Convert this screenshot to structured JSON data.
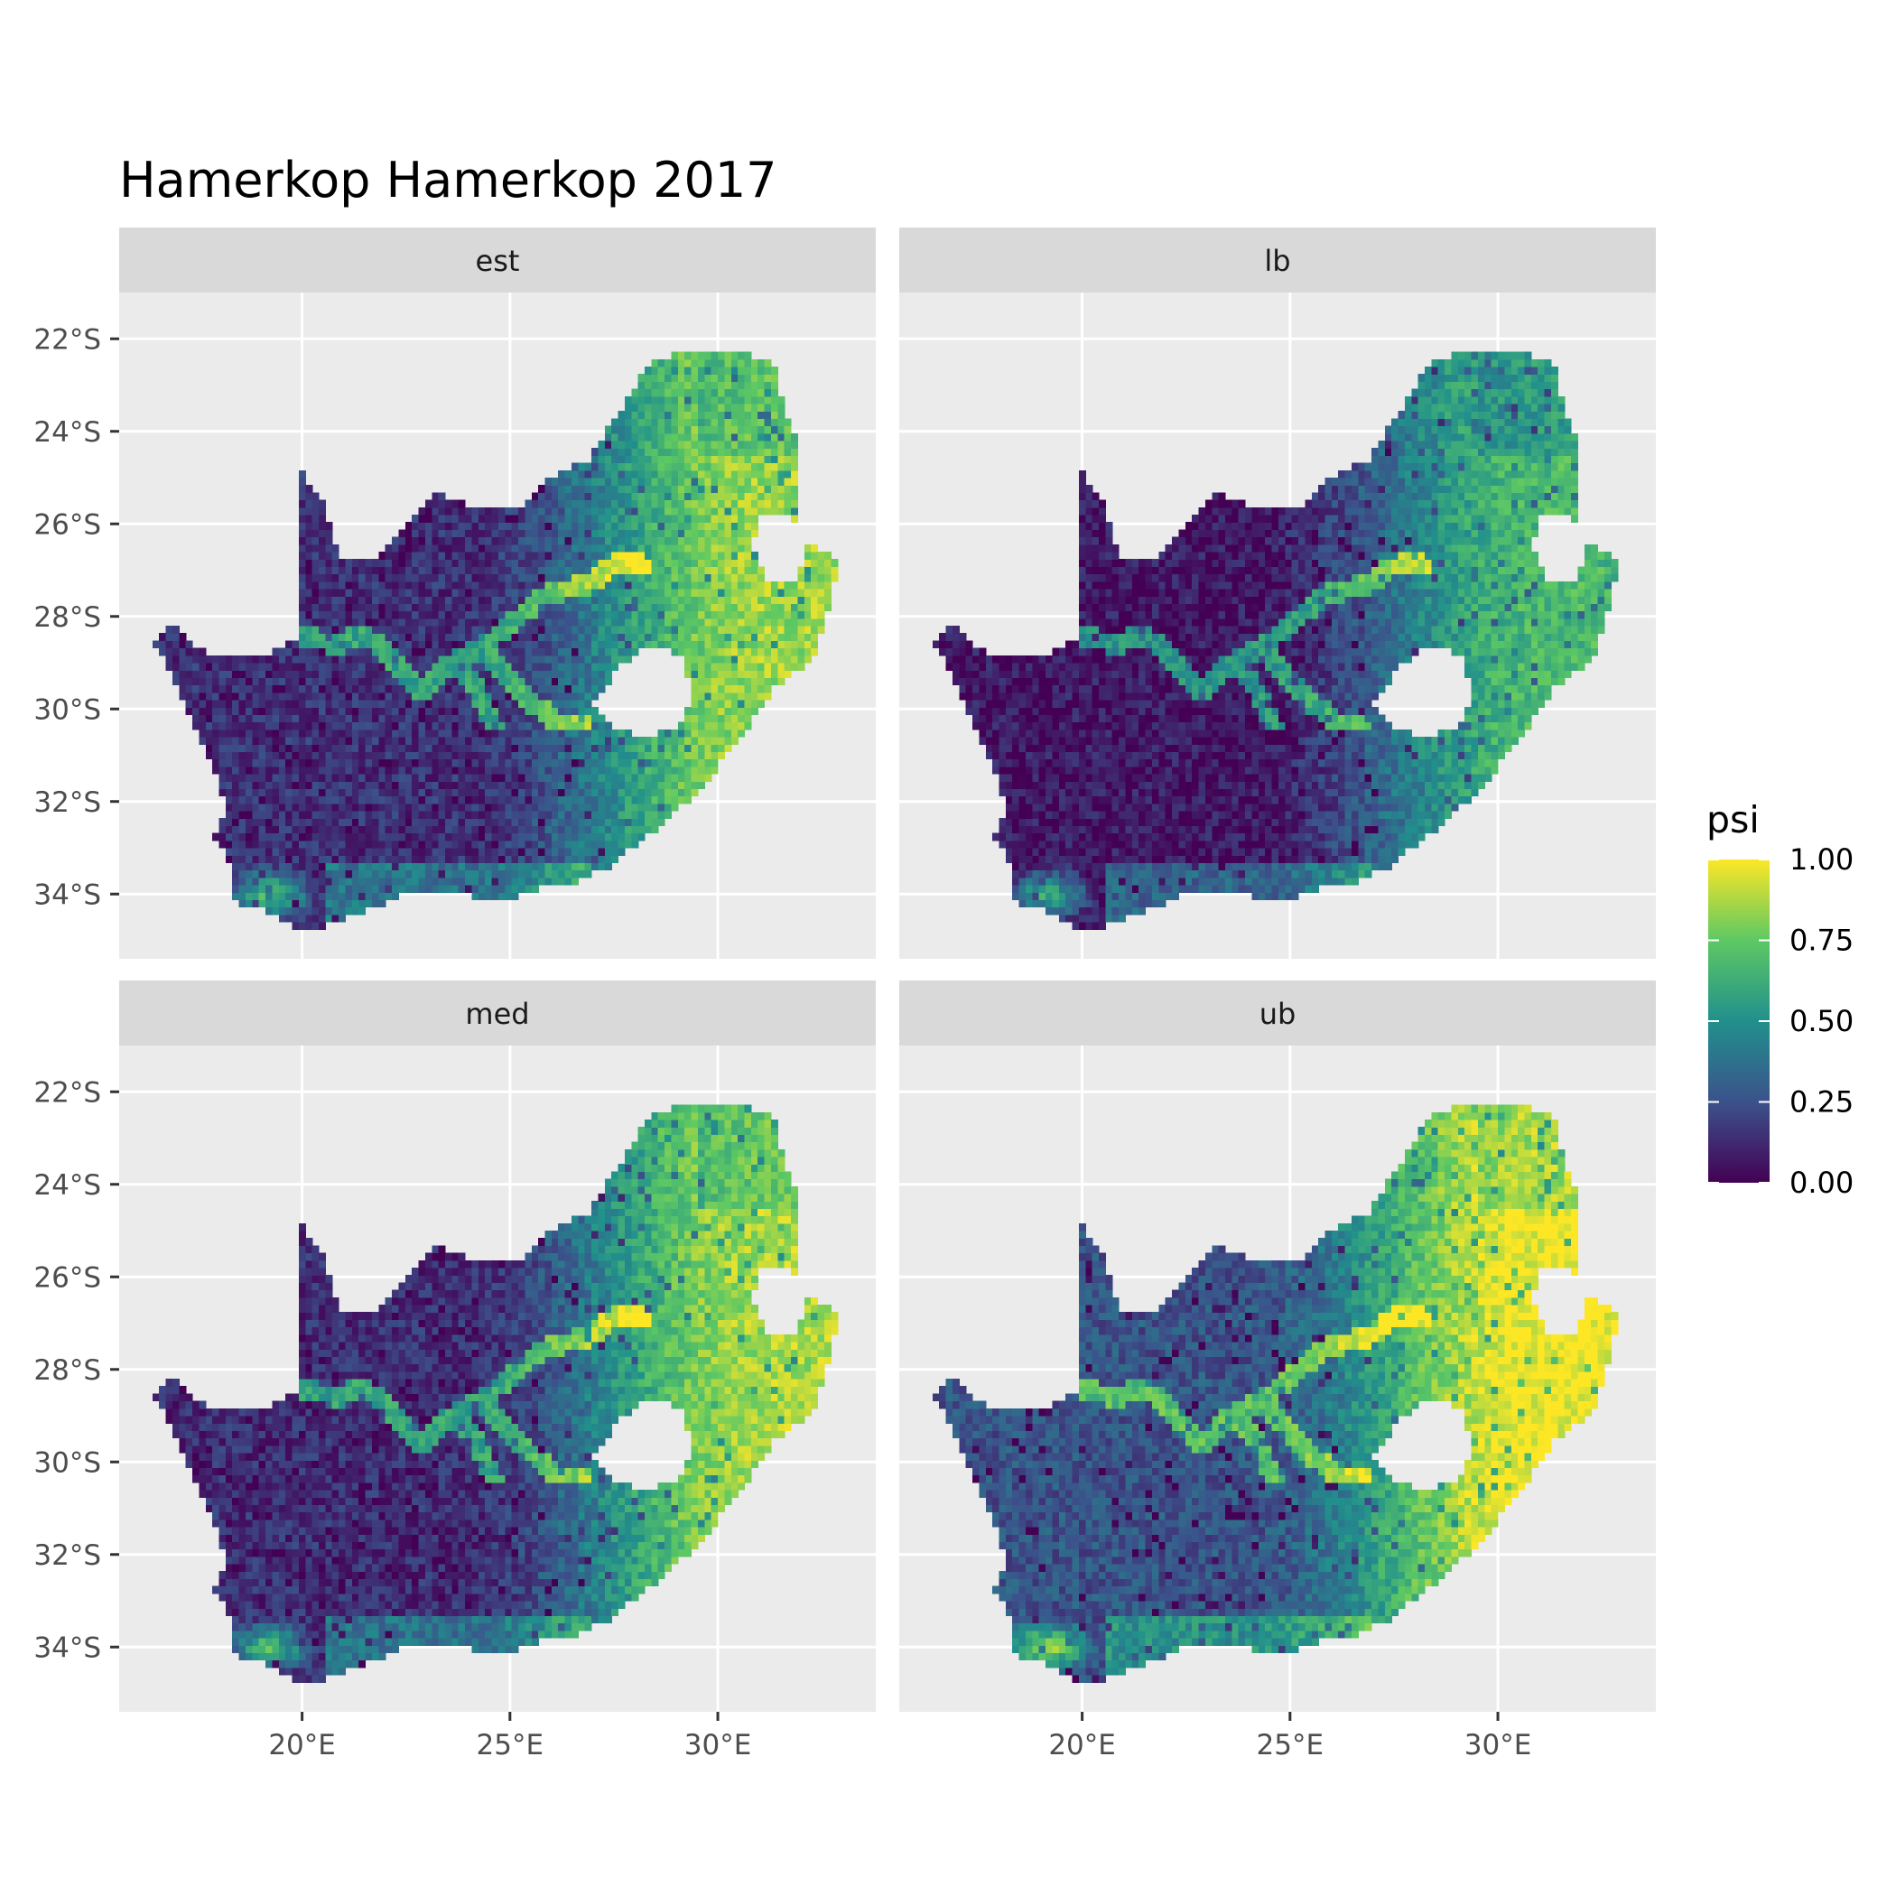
{
  "title": "Hamerkop Hamerkop 2017",
  "panels": [
    {
      "label": "est",
      "low_mean": 0.14,
      "high_mean": 0.78,
      "east_boost": 0.2
    },
    {
      "label": "lb",
      "low_mean": 0.07,
      "high_mean": 0.62,
      "east_boost": 0.16
    },
    {
      "label": "med",
      "low_mean": 0.13,
      "high_mean": 0.8,
      "east_boost": 0.2
    },
    {
      "label": "ub",
      "low_mean": 0.26,
      "high_mean": 0.93,
      "east_boost": 0.18
    }
  ],
  "axes": {
    "lon_range": [
      15.6,
      33.8
    ],
    "lat_range": [
      -35.4,
      -21.0
    ],
    "x_ticks": [
      {
        "value": 20,
        "label": "20°E"
      },
      {
        "value": 25,
        "label": "25°E"
      },
      {
        "value": 30,
        "label": "30°E"
      }
    ],
    "y_ticks": [
      {
        "value": -22,
        "label": "22°S"
      },
      {
        "value": -24,
        "label": "24°S"
      },
      {
        "value": -26,
        "label": "26°S"
      },
      {
        "value": -28,
        "label": "28°S"
      },
      {
        "value": -30,
        "label": "30°S"
      },
      {
        "value": -32,
        "label": "32°S"
      },
      {
        "value": -34,
        "label": "34°S"
      }
    ]
  },
  "legend": {
    "title": "psi",
    "colormap": "viridis",
    "range": [
      0,
      1
    ],
    "ticks": [
      {
        "value": 1.0,
        "label": "1.00"
      },
      {
        "value": 0.75,
        "label": "0.75"
      },
      {
        "value": 0.5,
        "label": "0.50"
      },
      {
        "value": 0.25,
        "label": "0.25"
      },
      {
        "value": 0.0,
        "label": "0.00"
      }
    ]
  },
  "colors": {
    "panel_bg": "#EBEBEB",
    "strip_bg": "#D9D9D9",
    "grid": "#FFFFFF",
    "viridis": [
      "#440154",
      "#3b528b",
      "#21908c",
      "#5dc863",
      "#fde725"
    ]
  },
  "map": {
    "outline": [
      [
        16.45,
        -28.6
      ],
      [
        16.9,
        -28.1
      ],
      [
        17.4,
        -28.7
      ],
      [
        18.2,
        -28.9
      ],
      [
        19.0,
        -28.9
      ],
      [
        19.9,
        -28.5
      ],
      [
        19.9,
        -24.8
      ],
      [
        20.5,
        -25.5
      ],
      [
        20.9,
        -26.8
      ],
      [
        21.7,
        -26.8
      ],
      [
        22.6,
        -26.0
      ],
      [
        23.2,
        -25.3
      ],
      [
        24.0,
        -25.6
      ],
      [
        25.2,
        -25.7
      ],
      [
        25.9,
        -25.0
      ],
      [
        26.9,
        -24.6
      ],
      [
        27.6,
        -23.6
      ],
      [
        28.4,
        -22.5
      ],
      [
        29.3,
        -22.2
      ],
      [
        30.2,
        -22.3
      ],
      [
        31.3,
        -22.4
      ],
      [
        31.6,
        -23.6
      ],
      [
        32.0,
        -24.4
      ],
      [
        32.0,
        -25.7
      ],
      [
        31.9,
        -26.3
      ],
      [
        32.9,
        -26.8
      ],
      [
        32.6,
        -28.0
      ],
      [
        32.3,
        -28.9
      ],
      [
        31.3,
        -29.6
      ],
      [
        30.4,
        -30.8
      ],
      [
        29.5,
        -31.8
      ],
      [
        28.5,
        -32.6
      ],
      [
        27.4,
        -33.4
      ],
      [
        26.4,
        -33.8
      ],
      [
        25.6,
        -33.9
      ],
      [
        24.8,
        -34.2
      ],
      [
        23.4,
        -33.9
      ],
      [
        22.5,
        -34.0
      ],
      [
        21.4,
        -34.4
      ],
      [
        20.4,
        -34.75
      ],
      [
        19.9,
        -34.8
      ],
      [
        19.2,
        -34.4
      ],
      [
        18.8,
        -34.3
      ],
      [
        18.4,
        -34.2
      ],
      [
        18.3,
        -33.4
      ],
      [
        17.9,
        -32.8
      ],
      [
        18.2,
        -32.1
      ],
      [
        17.6,
        -30.7
      ],
      [
        17.0,
        -29.5
      ]
    ],
    "lesotho": [
      [
        27.0,
        -29.9
      ],
      [
        27.6,
        -29.1
      ],
      [
        28.3,
        -28.6
      ],
      [
        29.1,
        -28.8
      ],
      [
        29.4,
        -29.8
      ],
      [
        29.0,
        -30.4
      ],
      [
        28.2,
        -30.6
      ],
      [
        27.4,
        -30.4
      ]
    ],
    "eswatini": [
      [
        30.8,
        -26.5
      ],
      [
        31.1,
        -25.7
      ],
      [
        31.9,
        -25.9
      ],
      [
        32.1,
        -26.5
      ],
      [
        31.9,
        -27.3
      ],
      [
        31.2,
        -27.3
      ]
    ],
    "rivers": [
      [
        [
          20.0,
          -28.4
        ],
        [
          20.8,
          -28.6
        ],
        [
          21.5,
          -28.4
        ],
        [
          22.2,
          -28.9
        ],
        [
          22.9,
          -29.6
        ],
        [
          23.6,
          -29.0
        ],
        [
          24.3,
          -28.7
        ]
      ],
      [
        [
          24.3,
          -28.7
        ],
        [
          25.1,
          -28.1
        ],
        [
          25.9,
          -27.5
        ],
        [
          26.8,
          -27.3
        ],
        [
          27.5,
          -26.9
        ],
        [
          28.2,
          -26.9
        ]
      ],
      [
        [
          24.3,
          -28.7
        ],
        [
          24.9,
          -29.3
        ],
        [
          25.6,
          -29.9
        ],
        [
          26.1,
          -30.3
        ],
        [
          26.8,
          -30.3
        ]
      ],
      [
        [
          23.6,
          -29.0
        ],
        [
          24.2,
          -29.5
        ],
        [
          24.6,
          -30.3
        ]
      ]
    ]
  }
}
